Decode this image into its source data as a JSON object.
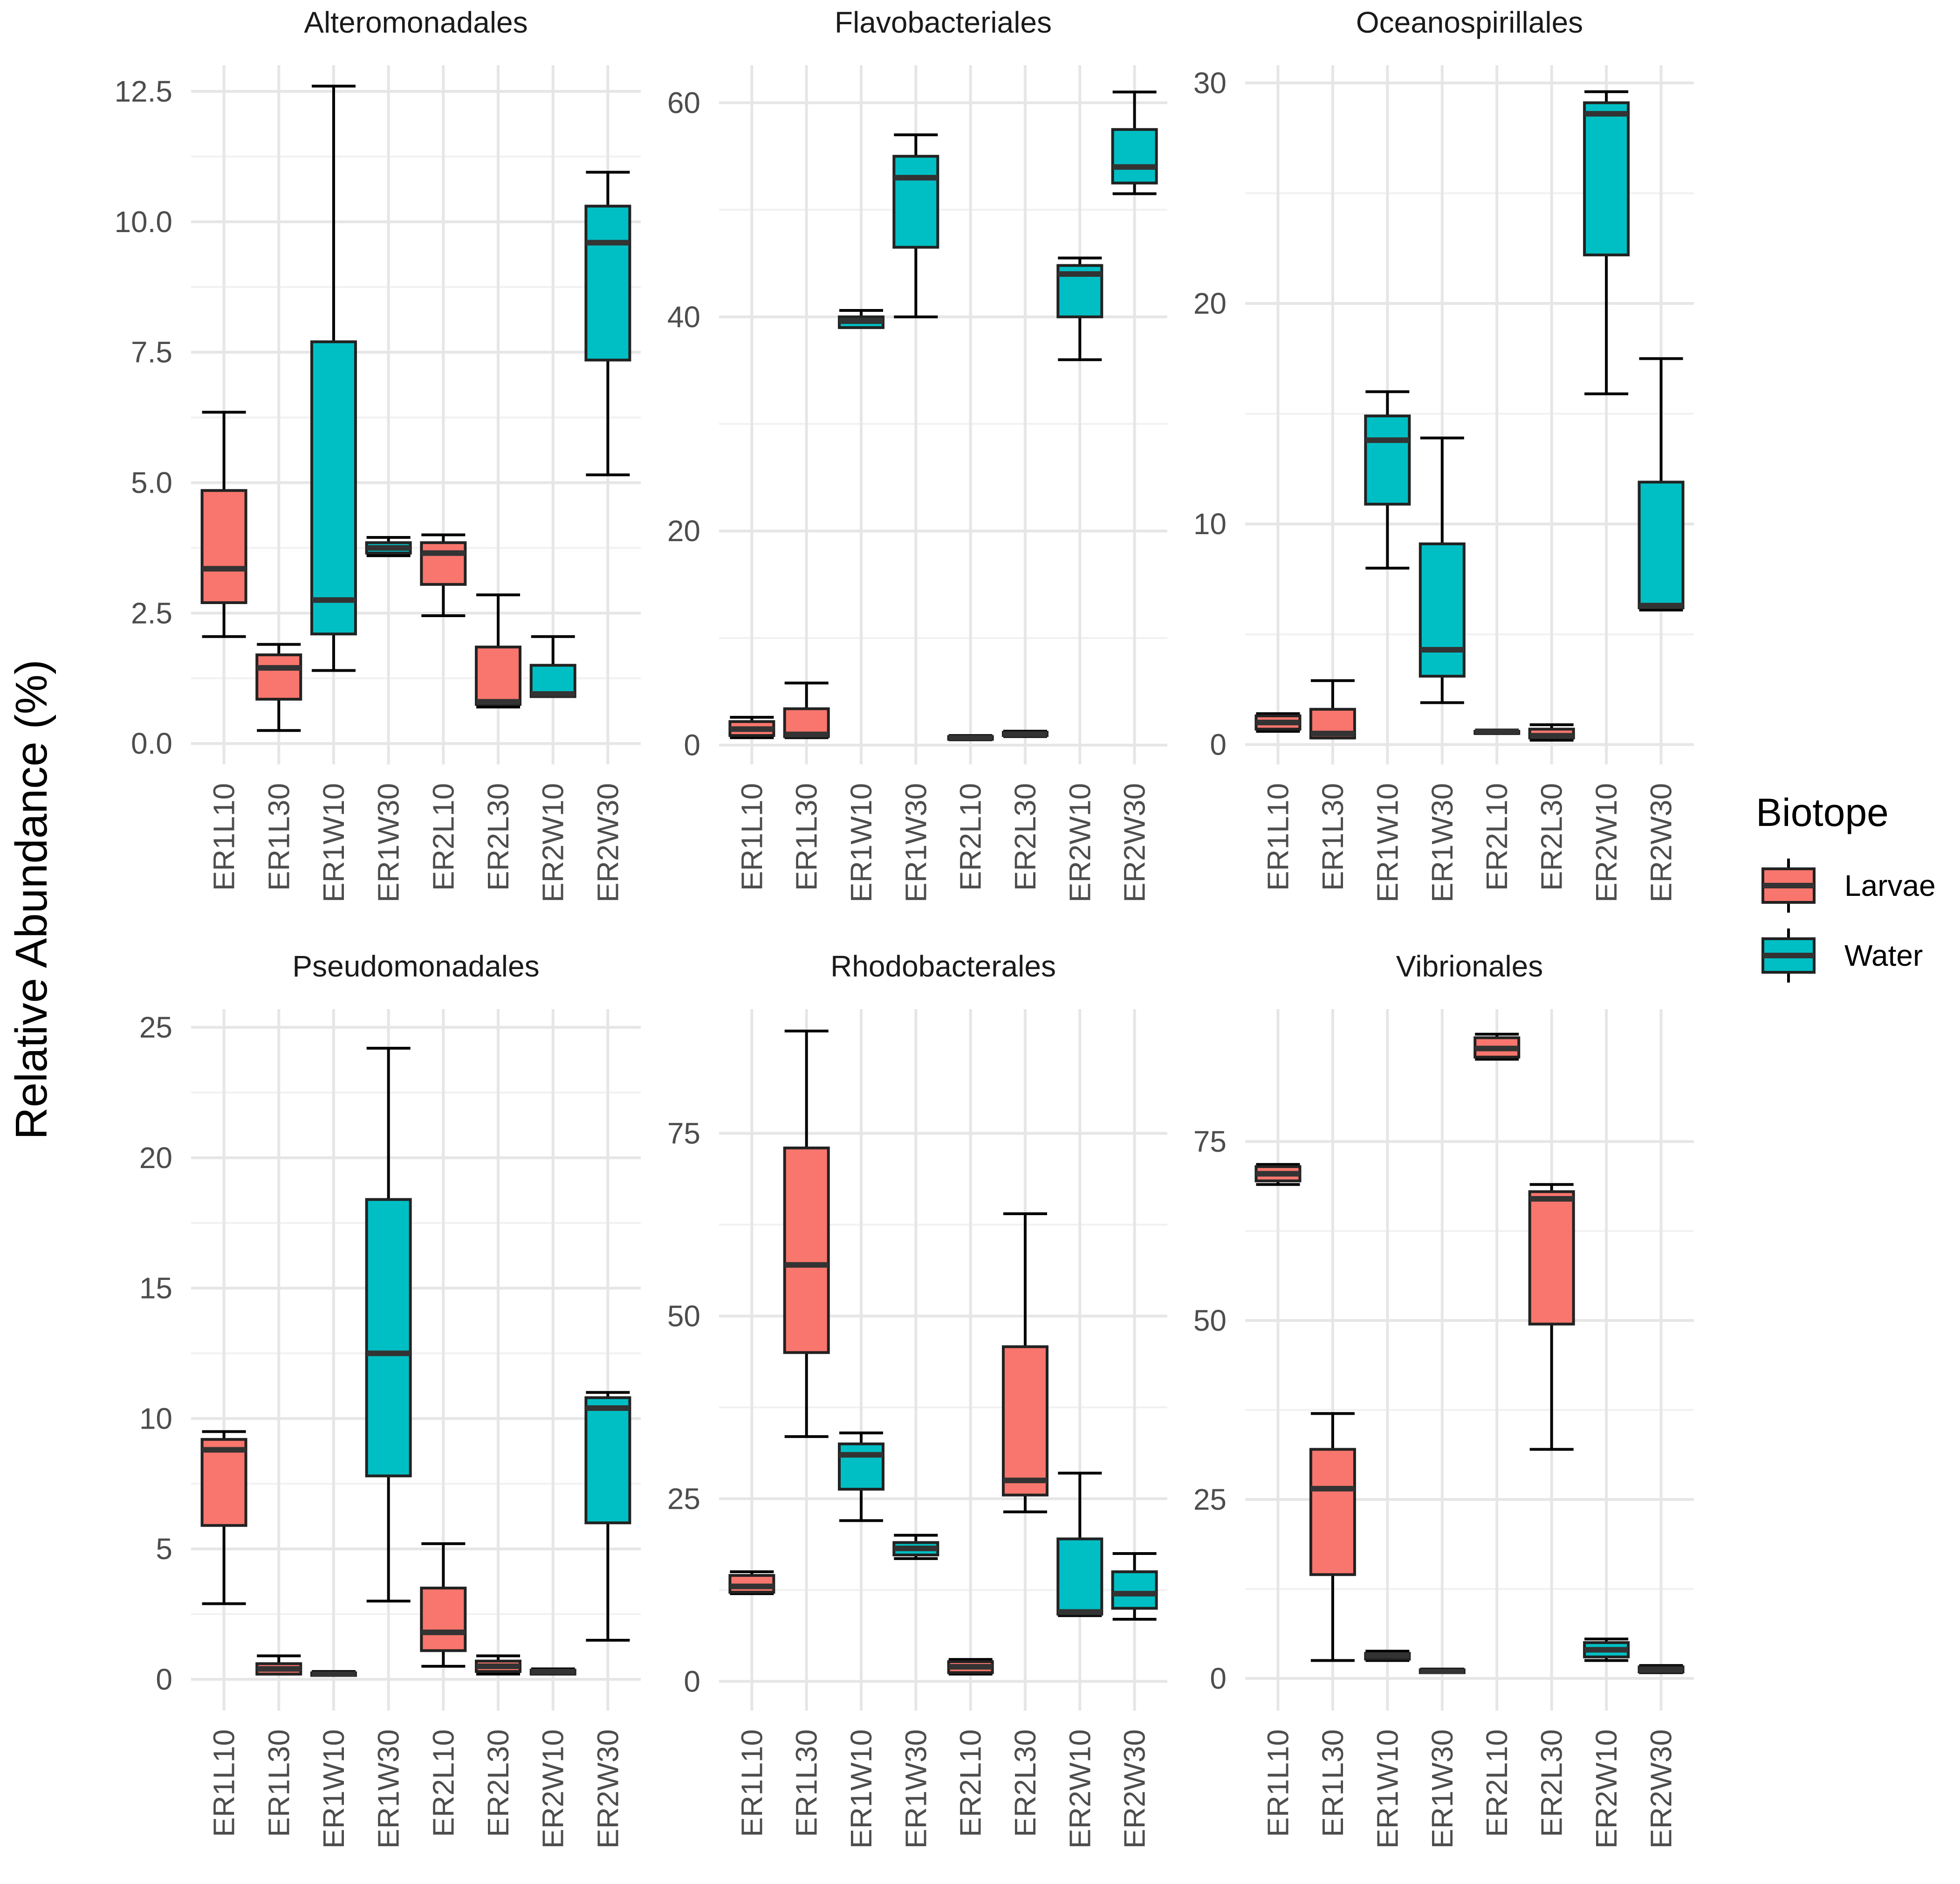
{
  "chart_data": {
    "type": "boxplot",
    "ylabel": "Relative Abundance (%)",
    "legend": {
      "title": "Biotope",
      "position": "right",
      "entries": [
        {
          "label": "Larvae",
          "color": "#F8766D"
        },
        {
          "label": "Water",
          "color": "#00BFC4"
        }
      ]
    },
    "categories": [
      "ER1L10",
      "ER1L30",
      "ER1W10",
      "ER1W30",
      "ER2L10",
      "ER2L30",
      "ER2W10",
      "ER2W30"
    ],
    "biotope": [
      "Larvae",
      "Larvae",
      "Water",
      "Water",
      "Larvae",
      "Larvae",
      "Water",
      "Water"
    ],
    "panels": [
      {
        "title": "Alteromonadales",
        "ylim": [
          -0.4,
          13.0
        ],
        "yticks": [
          0,
          2.5,
          5,
          7.5,
          10,
          12.5
        ],
        "ytick_labels": [
          "0.0",
          "2.5",
          "5.0",
          "7.5",
          "10.0",
          "12.5"
        ],
        "boxes": [
          [
            2.05,
            2.7,
            3.35,
            4.85,
            6.35
          ],
          [
            0.25,
            0.85,
            1.45,
            1.7,
            1.9
          ],
          [
            1.4,
            2.1,
            2.75,
            7.7,
            12.6
          ],
          [
            3.6,
            3.65,
            3.75,
            3.85,
            3.95
          ],
          [
            2.45,
            3.05,
            3.65,
            3.85,
            4.0
          ],
          [
            0.7,
            0.75,
            0.8,
            1.85,
            2.85
          ],
          [
            0.9,
            0.9,
            0.95,
            1.5,
            2.05
          ],
          [
            5.15,
            7.35,
            9.6,
            10.3,
            10.95
          ]
        ]
      },
      {
        "title": "Flavobacteriales",
        "ylim": [
          -1.8,
          63.5
        ],
        "yticks": [
          0,
          20,
          40,
          60
        ],
        "ytick_labels": [
          "0",
          "20",
          "40",
          "60"
        ],
        "boxes": [
          [
            0.7,
            0.9,
            1.5,
            2.2,
            2.6
          ],
          [
            0.7,
            0.8,
            1.0,
            3.4,
            5.8
          ],
          [
            39.0,
            39.0,
            39.6,
            40.0,
            40.6
          ],
          [
            40.0,
            46.5,
            53.0,
            55.0,
            57.0
          ],
          [
            0.5,
            0.55,
            0.7,
            0.8,
            0.9
          ],
          [
            0.8,
            0.9,
            1.0,
            1.2,
            1.3
          ],
          [
            36.0,
            40.0,
            44.0,
            44.8,
            45.5
          ],
          [
            51.5,
            52.5,
            54.0,
            57.5,
            61.0
          ]
        ]
      },
      {
        "title": "Oceanospirillales",
        "ylim": [
          -0.9,
          30.8
        ],
        "yticks": [
          0,
          10,
          20,
          30
        ],
        "ytick_labels": [
          "0",
          "10",
          "20",
          "30"
        ],
        "boxes": [
          [
            0.6,
            0.7,
            1.0,
            1.3,
            1.4
          ],
          [
            0.3,
            0.3,
            0.5,
            1.6,
            2.9
          ],
          [
            8.0,
            10.9,
            13.8,
            14.9,
            16.0
          ],
          [
            1.9,
            3.1,
            4.3,
            9.1,
            13.9
          ],
          [
            0.5,
            0.5,
            0.6,
            0.6,
            0.6
          ],
          [
            0.2,
            0.3,
            0.4,
            0.7,
            0.9
          ],
          [
            15.9,
            22.2,
            28.6,
            29.1,
            29.6
          ],
          [
            6.1,
            6.2,
            6.3,
            11.9,
            17.5
          ]
        ]
      },
      {
        "title": "Pseudomonadales",
        "ylim": [
          -1.2,
          25.7
        ],
        "yticks": [
          0,
          5,
          10,
          15,
          20,
          25
        ],
        "ytick_labels": [
          "0",
          "5",
          "10",
          "15",
          "20",
          "25"
        ],
        "boxes": [
          [
            2.9,
            5.9,
            8.8,
            9.2,
            9.5
          ],
          [
            0.2,
            0.2,
            0.4,
            0.6,
            0.9
          ],
          [
            0.15,
            0.15,
            0.2,
            0.25,
            0.3
          ],
          [
            3.0,
            7.8,
            12.5,
            18.4,
            24.2
          ],
          [
            0.5,
            1.1,
            1.8,
            3.5,
            5.2
          ],
          [
            0.2,
            0.3,
            0.5,
            0.7,
            0.9
          ],
          [
            0.2,
            0.2,
            0.3,
            0.35,
            0.4
          ],
          [
            1.5,
            6.0,
            10.4,
            10.8,
            11.0
          ]
        ]
      },
      {
        "title": "Rhodobacterales",
        "ylim": [
          -4.0,
          92.0
        ],
        "yticks": [
          0,
          25,
          50,
          75
        ],
        "ytick_labels": [
          "0",
          "25",
          "50",
          "75"
        ],
        "boxes": [
          [
            12.0,
            12.2,
            13.0,
            14.5,
            15.0
          ],
          [
            33.5,
            45.0,
            57.0,
            73.0,
            89.0
          ],
          [
            22.0,
            26.3,
            31.0,
            32.5,
            34.0
          ],
          [
            16.8,
            17.3,
            18.2,
            19.0,
            20.0
          ],
          [
            1.0,
            1.2,
            2.0,
            2.7,
            3.0
          ],
          [
            23.2,
            25.5,
            27.5,
            45.8,
            64.0
          ],
          [
            9.0,
            9.2,
            9.5,
            19.5,
            28.5
          ],
          [
            8.5,
            10.0,
            12.0,
            15.0,
            17.5
          ]
        ]
      },
      {
        "title": "Vibrionales",
        "ylim": [
          -4.5,
          93.5
        ],
        "yticks": [
          0,
          25,
          50,
          75
        ],
        "ytick_labels": [
          "0",
          "25",
          "50",
          "75"
        ],
        "boxes": [
          [
            69.0,
            69.5,
            70.5,
            71.5,
            71.8
          ],
          [
            2.5,
            14.5,
            26.5,
            32.0,
            37.0
          ],
          [
            2.5,
            2.7,
            3.2,
            3.5,
            3.8
          ],
          [
            0.8,
            0.8,
            1.0,
            1.2,
            1.3
          ],
          [
            86.5,
            86.8,
            88.0,
            89.5,
            90.0
          ],
          [
            32.0,
            49.5,
            67.0,
            68.0,
            69.0
          ],
          [
            2.5,
            3.0,
            4.0,
            5.0,
            5.5
          ],
          [
            0.8,
            0.9,
            1.2,
            1.6,
            1.8
          ]
        ]
      }
    ]
  }
}
